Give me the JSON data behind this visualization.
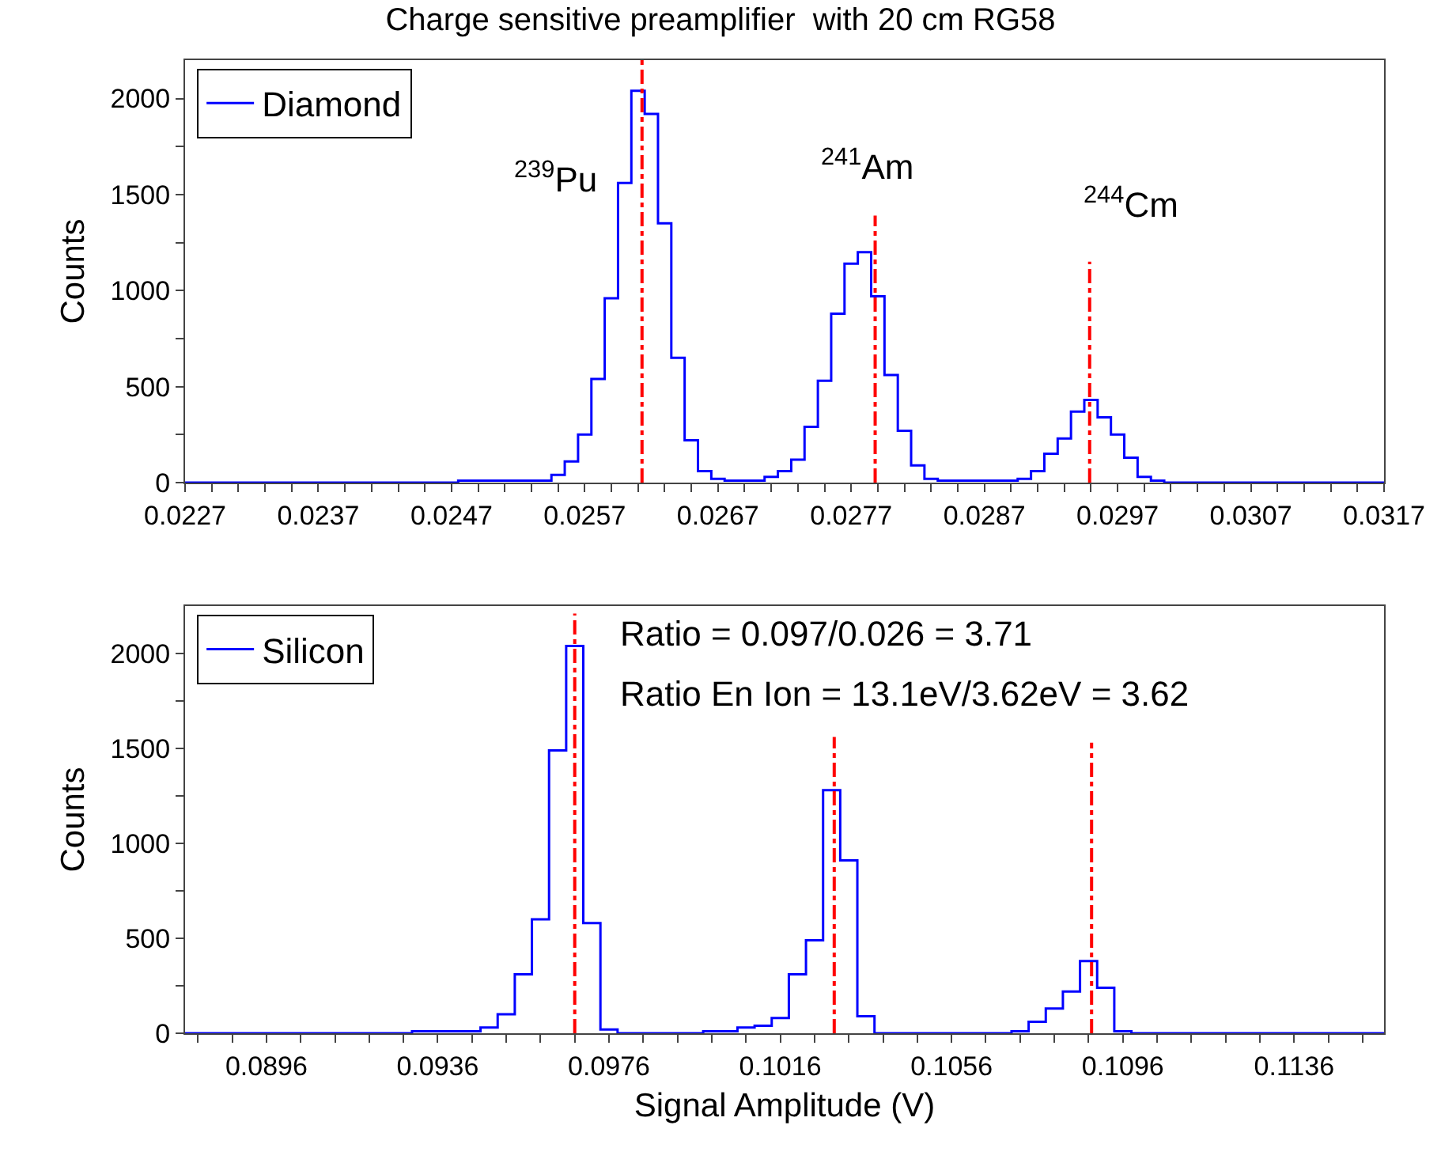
{
  "chart_data": [
    {
      "type": "histogram",
      "title": "Charge sensitive preamplifier  with 20 cm RG58",
      "ylabel": "Counts",
      "legend": "top left",
      "grid": false,
      "series": [
        {
          "name": "Diamond",
          "color": "#0000ff",
          "bins": [
            0.0227,
            0.02475,
            0.02515,
            0.02545,
            0.02555,
            0.02565,
            0.02575,
            0.02585,
            0.02595,
            0.02605,
            0.02615,
            0.02625,
            0.02635,
            0.02645,
            0.02655,
            0.02665,
            0.02675,
            0.02705,
            0.02715,
            0.02725,
            0.02735,
            0.02745,
            0.02755,
            0.02765,
            0.02775,
            0.02785,
            0.02795,
            0.02805,
            0.02815,
            0.02825,
            0.02835,
            0.02845,
            0.02895,
            0.02905,
            0.02915,
            0.02925,
            0.02935,
            0.02945,
            0.02955,
            0.02965,
            0.02975,
            0.02985,
            0.02995,
            0.03005,
            0.0317
          ],
          "values": [
            0,
            10,
            10,
            40,
            110,
            250,
            540,
            960,
            1560,
            2040,
            1920,
            1350,
            650,
            220,
            60,
            20,
            10,
            30,
            60,
            120,
            290,
            530,
            880,
            1140,
            1200,
            970,
            560,
            270,
            90,
            20,
            10,
            10,
            20,
            60,
            150,
            230,
            370,
            430,
            340,
            250,
            130,
            30,
            10,
            0
          ]
        },
        {
          "type": "line",
          "color": "#ff0000",
          "line_style": "dashed",
          "x": [
            0.02613,
            0.02613
          ],
          "values": [
            0,
            2200
          ]
        },
        {
          "type": "line",
          "color": "#ff0000",
          "line_style": "dashed",
          "x": [
            0.02788,
            0.02788
          ],
          "values": [
            0,
            1390
          ]
        },
        {
          "type": "line",
          "color": "#ff0000",
          "line_style": "dashed",
          "x": [
            0.02949,
            0.02949
          ],
          "values": [
            0,
            1150
          ]
        }
      ],
      "annotations": [
        "$^{239}$Pu",
        "$^{241}$Am",
        "$^{244}$Cm"
      ],
      "xlim": [
        0.0227,
        0.0317
      ],
      "xticks": [
        0.0227,
        {
          "value": 0.0229,
          "label": null
        },
        {
          "value": 0.0231,
          "label": null
        },
        {
          "value": 0.0233,
          "label": null
        },
        {
          "value": 0.0235,
          "label": null
        },
        0.0237,
        {
          "value": 0.0239,
          "label": null
        },
        {
          "value": 0.0241,
          "label": null
        },
        {
          "value": 0.0243,
          "label": null
        },
        {
          "value": 0.0245,
          "label": null
        },
        0.0247,
        {
          "value": 0.0249,
          "label": null
        },
        {
          "value": 0.0251,
          "label": null
        },
        {
          "value": 0.0253,
          "label": null
        },
        {
          "value": 0.0255,
          "label": null
        },
        0.0257,
        {
          "value": 0.0259,
          "label": null
        },
        {
          "value": 0.0261,
          "label": null
        },
        {
          "value": 0.0263,
          "label": null
        },
        {
          "value": 0.0265,
          "label": null
        },
        0.0267,
        {
          "value": 0.0269,
          "label": null
        },
        {
          "value": 0.0271,
          "label": null
        },
        {
          "value": 0.0273,
          "label": null
        },
        {
          "value": 0.0275,
          "label": null
        },
        0.0277,
        {
          "value": 0.0279,
          "label": null
        },
        {
          "value": 0.0281,
          "label": null
        },
        {
          "value": 0.0283,
          "label": null
        },
        {
          "value": 0.0285,
          "label": null
        },
        0.0287,
        {
          "value": 0.0289,
          "label": null
        },
        {
          "value": 0.0291,
          "label": null
        },
        {
          "value": 0.0293,
          "label": null
        },
        {
          "value": 0.0295,
          "label": null
        },
        0.0297,
        {
          "value": 0.0299,
          "label": null
        },
        {
          "value": 0.0301,
          "label": null
        },
        {
          "value": 0.0303,
          "label": null
        },
        {
          "value": 0.0305,
          "label": null
        },
        0.0307,
        {
          "value": 0.0309,
          "label": null
        },
        {
          "value": 0.0311,
          "label": null
        },
        {
          "value": 0.0313,
          "label": null
        },
        {
          "value": 0.0315,
          "label": null
        },
        0.0317
      ],
      "ylim": [
        0,
        2200
      ],
      "yticks": [
        0,
        {
          "value": 250,
          "label": null
        },
        500,
        {
          "value": 750,
          "label": null
        },
        1000,
        {
          "value": 1250,
          "label": null
        },
        1500,
        {
          "value": 1750,
          "label": null
        },
        2000
      ]
    },
    {
      "type": "histogram",
      "xlabel": "Signal Amplitude (V)",
      "ylabel": "Counts",
      "legend": "top left",
      "grid": false,
      "series": [
        {
          "name": "Silicon",
          "color": "#0000ff",
          "bins": [
            0.0877,
            0.093,
            0.0946,
            0.095,
            0.0954,
            0.0958,
            0.0962,
            0.0966,
            0.097,
            0.0974,
            0.0978,
            0.0998,
            0.1002,
            0.1006,
            0.101,
            0.1014,
            0.1018,
            0.1022,
            0.1026,
            0.103,
            0.1034,
            0.1038,
            0.107,
            0.1074,
            0.1078,
            0.1082,
            0.1086,
            0.109,
            0.1094,
            0.1098,
            0.1157
          ],
          "values": [
            0,
            10,
            30,
            100,
            310,
            600,
            1490,
            2040,
            580,
            20,
            0,
            10,
            10,
            30,
            40,
            80,
            310,
            490,
            1280,
            910,
            90,
            0,
            10,
            60,
            130,
            220,
            380,
            240,
            10,
            0
          ]
        },
        {
          "type": "line",
          "color": "#ff0000",
          "line_style": "dashed",
          "x": [
            0.0968,
            0.0968
          ],
          "values": [
            0,
            2210
          ]
        },
        {
          "type": "line",
          "color": "#ff0000",
          "line_style": "dashed",
          "x": [
            0.10286,
            0.10286
          ],
          "values": [
            0,
            1560
          ]
        },
        {
          "type": "line",
          "color": "#ff0000",
          "line_style": "dashed",
          "x": [
            0.10887,
            0.10887
          ],
          "values": [
            0,
            1530
          ]
        }
      ],
      "annotations": [
        "Ratio = 0.097/0.026 = 3.71",
        "Ratio En Ion = 13.1eV/3.62eV = 3.62"
      ],
      "xlim": [
        0.0877,
        0.1157
      ],
      "xticks": [
        {
          "value": 0.088,
          "label": null
        },
        {
          "value": 0.0888,
          "label": null
        },
        0.0896,
        {
          "value": 0.0904,
          "label": null
        },
        {
          "value": 0.0912,
          "label": null
        },
        {
          "value": 0.092,
          "label": null
        },
        {
          "value": 0.0928,
          "label": null
        },
        0.0936,
        {
          "value": 0.0944,
          "label": null
        },
        {
          "value": 0.0952,
          "label": null
        },
        {
          "value": 0.096,
          "label": null
        },
        {
          "value": 0.0968,
          "label": null
        },
        0.0976,
        {
          "value": 0.0984,
          "label": null
        },
        {
          "value": 0.0992,
          "label": null
        },
        {
          "value": 0.1,
          "label": null
        },
        {
          "value": 0.1008,
          "label": null
        },
        0.1016,
        {
          "value": 0.1024,
          "label": null
        },
        {
          "value": 0.1032,
          "label": null
        },
        {
          "value": 0.104,
          "label": null
        },
        {
          "value": 0.1048,
          "label": null
        },
        0.1056,
        {
          "value": 0.1064,
          "label": null
        },
        {
          "value": 0.1072,
          "label": null
        },
        {
          "value": 0.108,
          "label": null
        },
        {
          "value": 0.1088,
          "label": null
        },
        0.1096,
        {
          "value": 0.1104,
          "label": null
        },
        {
          "value": 0.1112,
          "label": null
        },
        {
          "value": 0.112,
          "label": null
        },
        {
          "value": 0.1128,
          "label": null
        },
        0.1136,
        {
          "value": 0.1144,
          "label": null
        },
        {
          "value": 0.1152,
          "label": null
        }
      ],
      "ylim": [
        0,
        2250
      ],
      "yticks": [
        0,
        {
          "value": 250,
          "label": null
        },
        500,
        {
          "value": 750,
          "label": null
        },
        1000,
        {
          "value": 1250,
          "label": null
        },
        1500,
        {
          "value": 1750,
          "label": null
        },
        2000
      ]
    }
  ]
}
